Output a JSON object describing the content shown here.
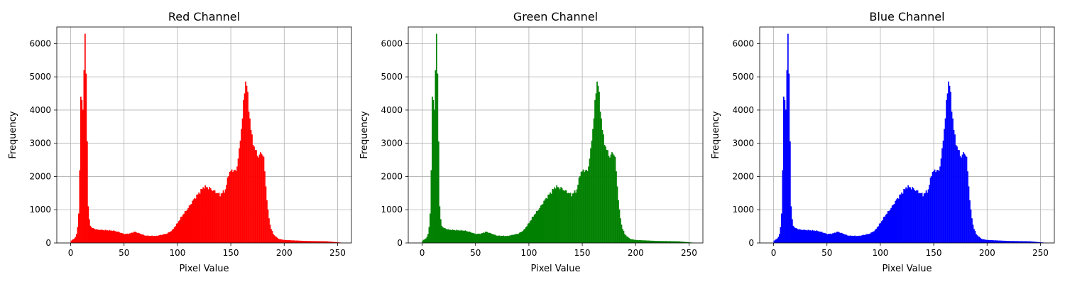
{
  "chart_data": [
    {
      "type": "bar",
      "title": "Red Channel",
      "xlabel": "Pixel Value",
      "ylabel": "Frequency",
      "color": "#ff0000",
      "xlim": [
        -13,
        263
      ],
      "ylim": [
        0,
        6500
      ],
      "xticks": [
        0,
        50,
        100,
        150,
        200,
        250
      ],
      "yticks": [
        0,
        1000,
        2000,
        3000,
        4000,
        5000,
        6000
      ],
      "grid": true,
      "bins": 256,
      "x": [
        0,
        255
      ],
      "anchors": [
        [
          0,
          60
        ],
        [
          4,
          150
        ],
        [
          6,
          300
        ],
        [
          7,
          700
        ],
        [
          8,
          1100
        ],
        [
          9,
          3500
        ],
        [
          10,
          5100
        ],
        [
          11,
          3600
        ],
        [
          12,
          4500
        ],
        [
          13,
          6200
        ],
        [
          14,
          5900
        ],
        [
          15,
          4400
        ],
        [
          16,
          1350
        ],
        [
          17,
          800
        ],
        [
          18,
          550
        ],
        [
          20,
          450
        ],
        [
          25,
          400
        ],
        [
          35,
          380
        ],
        [
          40,
          370
        ],
        [
          45,
          330
        ],
        [
          50,
          270
        ],
        [
          55,
          280
        ],
        [
          60,
          340
        ],
        [
          65,
          280
        ],
        [
          70,
          220
        ],
        [
          80,
          210
        ],
        [
          90,
          280
        ],
        [
          95,
          380
        ],
        [
          100,
          600
        ],
        [
          105,
          850
        ],
        [
          110,
          1050
        ],
        [
          115,
          1300
        ],
        [
          120,
          1500
        ],
        [
          125,
          1700
        ],
        [
          130,
          1650
        ],
        [
          135,
          1550
        ],
        [
          140,
          1450
        ],
        [
          145,
          1600
        ],
        [
          148,
          2100
        ],
        [
          152,
          2200
        ],
        [
          155,
          2150
        ],
        [
          158,
          2800
        ],
        [
          160,
          3500
        ],
        [
          162,
          4200
        ],
        [
          163,
          4650
        ],
        [
          164,
          4900
        ],
        [
          165,
          4800
        ],
        [
          166,
          4300
        ],
        [
          168,
          3700
        ],
        [
          170,
          3100
        ],
        [
          172,
          2900
        ],
        [
          174,
          2700
        ],
        [
          176,
          2600
        ],
        [
          178,
          2700
        ],
        [
          180,
          2700
        ],
        [
          181,
          2500
        ],
        [
          183,
          1600
        ],
        [
          185,
          900
        ],
        [
          187,
          500
        ],
        [
          190,
          250
        ],
        [
          195,
          120
        ],
        [
          200,
          90
        ],
        [
          220,
          60
        ],
        [
          240,
          50
        ],
        [
          250,
          20
        ],
        [
          255,
          5
        ]
      ],
      "peak_values": [
        {
          "x": 13,
          "y": 6200
        },
        {
          "x": 164,
          "y": 4900
        }
      ]
    },
    {
      "type": "bar",
      "title": "Green Channel",
      "xlabel": "Pixel Value",
      "ylabel": "Frequency",
      "color": "#008000",
      "xlim": [
        -13,
        263
      ],
      "ylim": [
        0,
        6500
      ],
      "xticks": [
        0,
        50,
        100,
        150,
        200,
        250
      ],
      "yticks": [
        0,
        1000,
        2000,
        3000,
        4000,
        5000,
        6000
      ],
      "grid": true,
      "bins": 256,
      "x": [
        0,
        255
      ],
      "anchors": [
        [
          0,
          60
        ],
        [
          4,
          150
        ],
        [
          6,
          300
        ],
        [
          7,
          700
        ],
        [
          8,
          1100
        ],
        [
          9,
          3500
        ],
        [
          10,
          5100
        ],
        [
          11,
          3600
        ],
        [
          12,
          4500
        ],
        [
          13,
          6200
        ],
        [
          14,
          5900
        ],
        [
          15,
          4400
        ],
        [
          16,
          1350
        ],
        [
          17,
          800
        ],
        [
          18,
          550
        ],
        [
          20,
          450
        ],
        [
          25,
          400
        ],
        [
          35,
          380
        ],
        [
          40,
          370
        ],
        [
          45,
          330
        ],
        [
          50,
          270
        ],
        [
          55,
          280
        ],
        [
          60,
          340
        ],
        [
          65,
          280
        ],
        [
          70,
          220
        ],
        [
          80,
          210
        ],
        [
          90,
          280
        ],
        [
          95,
          380
        ],
        [
          100,
          600
        ],
        [
          105,
          850
        ],
        [
          110,
          1050
        ],
        [
          115,
          1300
        ],
        [
          120,
          1500
        ],
        [
          125,
          1700
        ],
        [
          130,
          1650
        ],
        [
          135,
          1550
        ],
        [
          140,
          1450
        ],
        [
          145,
          1600
        ],
        [
          148,
          2100
        ],
        [
          152,
          2200
        ],
        [
          155,
          2150
        ],
        [
          158,
          2800
        ],
        [
          160,
          3500
        ],
        [
          162,
          4200
        ],
        [
          163,
          4650
        ],
        [
          164,
          4900
        ],
        [
          165,
          4800
        ],
        [
          166,
          4300
        ],
        [
          168,
          3700
        ],
        [
          170,
          3100
        ],
        [
          172,
          2900
        ],
        [
          174,
          2700
        ],
        [
          176,
          2600
        ],
        [
          178,
          2700
        ],
        [
          180,
          2700
        ],
        [
          181,
          2500
        ],
        [
          183,
          1600
        ],
        [
          185,
          900
        ],
        [
          187,
          500
        ],
        [
          190,
          250
        ],
        [
          195,
          120
        ],
        [
          200,
          90
        ],
        [
          220,
          60
        ],
        [
          240,
          50
        ],
        [
          250,
          20
        ],
        [
          255,
          5
        ]
      ],
      "peak_values": [
        {
          "x": 13,
          "y": 6200
        },
        {
          "x": 164,
          "y": 4900
        }
      ]
    },
    {
      "type": "bar",
      "title": "Blue Channel",
      "xlabel": "Pixel Value",
      "ylabel": "Frequency",
      "color": "#0000ff",
      "xlim": [
        -13,
        263
      ],
      "ylim": [
        0,
        6500
      ],
      "xticks": [
        0,
        50,
        100,
        150,
        200,
        250
      ],
      "yticks": [
        0,
        1000,
        2000,
        3000,
        4000,
        5000,
        6000
      ],
      "grid": true,
      "bins": 256,
      "x": [
        0,
        255
      ],
      "anchors": [
        [
          0,
          60
        ],
        [
          4,
          150
        ],
        [
          6,
          300
        ],
        [
          7,
          700
        ],
        [
          8,
          1100
        ],
        [
          9,
          3500
        ],
        [
          10,
          5100
        ],
        [
          11,
          3600
        ],
        [
          12,
          4500
        ],
        [
          13,
          6200
        ],
        [
          14,
          5900
        ],
        [
          15,
          4400
        ],
        [
          16,
          1350
        ],
        [
          17,
          800
        ],
        [
          18,
          550
        ],
        [
          20,
          450
        ],
        [
          25,
          400
        ],
        [
          35,
          380
        ],
        [
          40,
          370
        ],
        [
          45,
          330
        ],
        [
          50,
          270
        ],
        [
          55,
          280
        ],
        [
          60,
          340
        ],
        [
          65,
          280
        ],
        [
          70,
          220
        ],
        [
          80,
          210
        ],
        [
          90,
          280
        ],
        [
          95,
          380
        ],
        [
          100,
          600
        ],
        [
          105,
          850
        ],
        [
          110,
          1050
        ],
        [
          115,
          1300
        ],
        [
          120,
          1500
        ],
        [
          125,
          1700
        ],
        [
          130,
          1650
        ],
        [
          135,
          1550
        ],
        [
          140,
          1450
        ],
        [
          145,
          1600
        ],
        [
          148,
          2100
        ],
        [
          152,
          2200
        ],
        [
          155,
          2150
        ],
        [
          158,
          2800
        ],
        [
          160,
          3500
        ],
        [
          162,
          4200
        ],
        [
          163,
          4650
        ],
        [
          164,
          4900
        ],
        [
          165,
          4800
        ],
        [
          166,
          4300
        ],
        [
          168,
          3700
        ],
        [
          170,
          3100
        ],
        [
          172,
          2900
        ],
        [
          174,
          2700
        ],
        [
          176,
          2600
        ],
        [
          178,
          2700
        ],
        [
          180,
          2700
        ],
        [
          181,
          2500
        ],
        [
          183,
          1600
        ],
        [
          185,
          900
        ],
        [
          187,
          500
        ],
        [
          190,
          250
        ],
        [
          195,
          120
        ],
        [
          200,
          90
        ],
        [
          220,
          60
        ],
        [
          240,
          50
        ],
        [
          250,
          20
        ],
        [
          255,
          5
        ]
      ],
      "peak_values": [
        {
          "x": 13,
          "y": 6200
        },
        {
          "x": 164,
          "y": 4900
        }
      ]
    }
  ]
}
